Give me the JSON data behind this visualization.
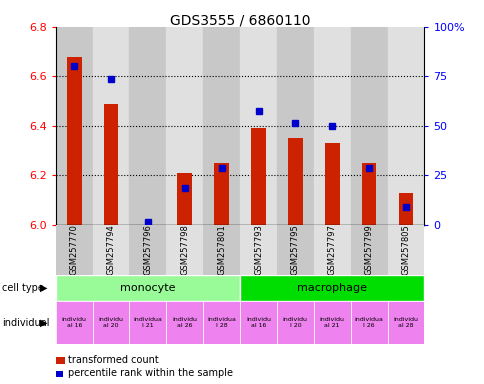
{
  "title": "GDS3555 / 6860110",
  "samples": [
    "GSM257770",
    "GSM257794",
    "GSM257796",
    "GSM257798",
    "GSM257801",
    "GSM257793",
    "GSM257795",
    "GSM257797",
    "GSM257799",
    "GSM257805"
  ],
  "red_values": [
    6.68,
    6.49,
    6.0,
    6.21,
    6.25,
    6.39,
    6.35,
    6.33,
    6.25,
    6.13
  ],
  "blue_values": [
    6.64,
    6.59,
    6.01,
    6.15,
    6.23,
    6.46,
    6.41,
    6.4,
    6.23,
    6.07
  ],
  "ymin": 6.0,
  "ymax": 6.8,
  "y2min": 0,
  "y2max": 100,
  "y_ticks": [
    6.0,
    6.2,
    6.4,
    6.6,
    6.8
  ],
  "y2_ticks": [
    0,
    25,
    50,
    75,
    100
  ],
  "y2_ticklabels": [
    "0",
    "25",
    "50",
    "75",
    "100%"
  ],
  "cell_type_labels": [
    "monocyte",
    "macrophage"
  ],
  "cell_type_color_mono": "#98FB98",
  "cell_type_color_macro": "#00DD00",
  "individual_labels": [
    "individu\nal 16",
    "individu\nal 20",
    "individua\nl 21",
    "individu\nal 26",
    "individua\nl 28",
    "individu\nal 16",
    "individu\nl 20",
    "individu\nal 21",
    "individua\nl 26",
    "individu\nal 28"
  ],
  "individual_color": "#EE82EE",
  "bar_color": "#CC2200",
  "dot_color": "#0000CC",
  "bg_color_odd": "#C8C8C8",
  "bg_color_even": "#E0E0E0",
  "legend_red": "transformed count",
  "legend_blue": "percentile rank within the sample"
}
